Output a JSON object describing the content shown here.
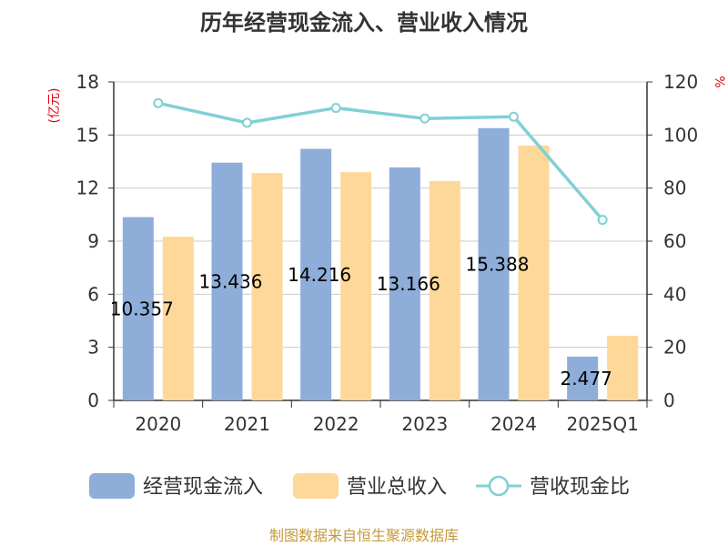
{
  "chart_data": {
    "type": "bar",
    "title": "历年经营现金流入、营业收入情况",
    "categories": [
      "2020",
      "2021",
      "2022",
      "2023",
      "2024",
      "2025Q1"
    ],
    "series": [
      {
        "name": "经营现金流入",
        "type": "bar",
        "axis": "left",
        "color": "#8eadd9",
        "values": [
          10.357,
          13.436,
          14.216,
          13.166,
          15.388,
          2.477
        ],
        "labels": [
          "10.357",
          "13.436",
          "14.216",
          "13.166",
          "15.388",
          "2.477"
        ]
      },
      {
        "name": "营业总收入",
        "type": "bar",
        "axis": "left",
        "color": "#fed898",
        "values": [
          9.25,
          12.85,
          12.9,
          12.4,
          14.4,
          3.65
        ]
      },
      {
        "name": "营收现金比",
        "type": "line",
        "axis": "right",
        "color": "#80d0d4",
        "values": [
          112,
          104.6,
          110.2,
          106.2,
          106.9,
          68
        ]
      }
    ],
    "y_left": {
      "unit": "(亿元)",
      "ticks": [
        "0",
        "3",
        "6",
        "9",
        "12",
        "15",
        "18"
      ],
      "ylim": [
        0,
        18
      ]
    },
    "y_right": {
      "unit": "%",
      "ticks": [
        "0",
        "20",
        "40",
        "60",
        "80",
        "100",
        "120"
      ],
      "ylim": [
        0,
        120
      ]
    },
    "grid": true,
    "legend_position": "bottom"
  },
  "source": "制图数据来自恒生聚源数据库"
}
